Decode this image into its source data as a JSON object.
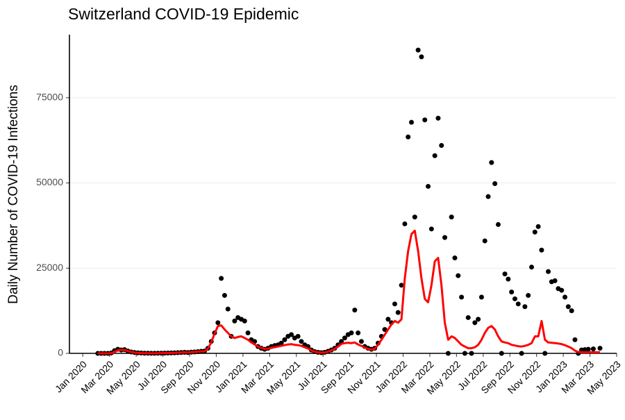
{
  "chart_data": {
    "type": "scatter",
    "title": "Switzerland COVID-19 Epidemic",
    "y_label": "Daily Number of COVID-19 Infections",
    "xlim": [
      "2019-12",
      "2023-05"
    ],
    "xticks": [
      {
        "value": "2020-01",
        "label": "Jan 2020"
      },
      {
        "value": "2020-03",
        "label": "Mar 2020"
      },
      {
        "value": "2020-05",
        "label": "May 2020"
      },
      {
        "value": "2020-07",
        "label": "Jul 2020"
      },
      {
        "value": "2020-09",
        "label": "Sep 2020"
      },
      {
        "value": "2020-11",
        "label": "Nov 2020"
      },
      {
        "value": "2021-01",
        "label": "Jan 2021"
      },
      {
        "value": "2021-03",
        "label": "Mar 2021"
      },
      {
        "value": "2021-05",
        "label": "May 2021"
      },
      {
        "value": "2021-07",
        "label": "Jul 2021"
      },
      {
        "value": "2021-09",
        "label": "Sep 2021"
      },
      {
        "value": "2021-11",
        "label": "Nov 2021"
      },
      {
        "value": "2022-01",
        "label": "Jan 2022"
      },
      {
        "value": "2022-03",
        "label": "Mar 2022"
      },
      {
        "value": "2022-05",
        "label": "May 2022"
      },
      {
        "value": "2022-07",
        "label": "Jul 2022"
      },
      {
        "value": "2022-09",
        "label": "Sep 2022"
      },
      {
        "value": "2022-11",
        "label": "Nov 2022"
      },
      {
        "value": "2023-01",
        "label": "Jan 2023"
      },
      {
        "value": "2023-03",
        "label": "Mar 2023"
      },
      {
        "value": "2023-05",
        "label": "May 2023"
      }
    ],
    "ylim": [
      0,
      93500
    ],
    "yticks": [
      0,
      25000,
      50000,
      75000
    ],
    "grid": true,
    "x": [
      "2020-02",
      "2020-02",
      "2020-02",
      "2020-02",
      "2020-03",
      "2020-03",
      "2020-03",
      "2020-03",
      "2020-04",
      "2020-04",
      "2020-04",
      "2020-04",
      "2020-05",
      "2020-05",
      "2020-05",
      "2020-05",
      "2020-06",
      "2020-06",
      "2020-06",
      "2020-06",
      "2020-07",
      "2020-07",
      "2020-07",
      "2020-07",
      "2020-08",
      "2020-08",
      "2020-08",
      "2020-08",
      "2020-09",
      "2020-09",
      "2020-09",
      "2020-09",
      "2020-10",
      "2020-10",
      "2020-10",
      "2020-10",
      "2020-11",
      "2020-11",
      "2020-11",
      "2020-11",
      "2020-12",
      "2020-12",
      "2020-12",
      "2020-12",
      "2021-01",
      "2021-01",
      "2021-01",
      "2021-01",
      "2021-02",
      "2021-02",
      "2021-02",
      "2021-02",
      "2021-03",
      "2021-03",
      "2021-03",
      "2021-03",
      "2021-04",
      "2021-04",
      "2021-04",
      "2021-04",
      "2021-05",
      "2021-05",
      "2021-05",
      "2021-05",
      "2021-06",
      "2021-06",
      "2021-06",
      "2021-06",
      "2021-07",
      "2021-07",
      "2021-07",
      "2021-07",
      "2021-08",
      "2021-08",
      "2021-08",
      "2021-08",
      "2021-09",
      "2021-09",
      "2021-09",
      "2021-09",
      "2021-10",
      "2021-10",
      "2021-10",
      "2021-10",
      "2021-11",
      "2021-11",
      "2021-11",
      "2021-11",
      "2021-12",
      "2021-12",
      "2021-12",
      "2021-12",
      "2022-01",
      "2022-01",
      "2022-01",
      "2022-01",
      "2022-02",
      "2022-02",
      "2022-02",
      "2022-02",
      "2022-03",
      "2022-03",
      "2022-03",
      "2022-03",
      "2022-04",
      "2022-04",
      "2022-04",
      "2022-04",
      "2022-05",
      "2022-05",
      "2022-05",
      "2022-05",
      "2022-06",
      "2022-06",
      "2022-06",
      "2022-06",
      "2022-07",
      "2022-07",
      "2022-07",
      "2022-07",
      "2022-08",
      "2022-08",
      "2022-08",
      "2022-08",
      "2022-09",
      "2022-09",
      "2022-09",
      "2022-09",
      "2022-10",
      "2022-10",
      "2022-10",
      "2022-10",
      "2022-11",
      "2022-11",
      "2022-11",
      "2022-11",
      "2022-12",
      "2022-12",
      "2022-12",
      "2022-12",
      "2023-01",
      "2023-01",
      "2023-01",
      "2023-01",
      "2023-02",
      "2023-02",
      "2023-02",
      "2023-02",
      "2023-03",
      "2023-03"
    ],
    "series": [
      {
        "type": "scatter",
        "color": "#000000",
        "values": [
          0,
          0,
          0,
          0,
          100,
          800,
          1200,
          1000,
          1100,
          700,
          400,
          250,
          150,
          100,
          50,
          40,
          30,
          30,
          40,
          50,
          80,
          100,
          120,
          150,
          200,
          250,
          300,
          250,
          350,
          400,
          500,
          600,
          700,
          1500,
          3500,
          6000,
          9000,
          22000,
          17000,
          13000,
          5000,
          9500,
          10500,
          10000,
          9500,
          6000,
          4000,
          3500,
          2000,
          1500,
          1200,
          1500,
          2000,
          2300,
          2500,
          3000,
          4000,
          5000,
          5500,
          4500,
          5000,
          3500,
          2500,
          2000,
          1000,
          500,
          300,
          200,
          300,
          600,
          1000,
          1500,
          2500,
          3500,
          4500,
          5500,
          6000,
          12700,
          6000,
          3500,
          2000,
          1500,
          1200,
          1500,
          3000,
          5000,
          7000,
          10000,
          9000,
          14500,
          12000,
          20000,
          38000,
          63500,
          67800,
          40000,
          89000,
          87000,
          68500,
          49000,
          36500,
          58000,
          69000,
          61000,
          34000,
          0,
          40000,
          28000,
          22800,
          16500,
          0,
          10500,
          0,
          9000,
          10000,
          16500,
          33000,
          46000,
          56000,
          49800,
          37800,
          0,
          23300,
          21800,
          18000,
          16000,
          14500,
          0,
          13700,
          17000,
          25300,
          35600,
          37200,
          30300,
          0,
          24000,
          21000,
          21300,
          19000,
          18500,
          16500,
          13700,
          12500,
          4000,
          0,
          1000,
          1100,
          1200,
          1300,
          1500
        ]
      },
      {
        "type": "line",
        "color": "#ff0000",
        "values": [
          0,
          0,
          0,
          0,
          50,
          400,
          900,
          1000,
          1000,
          700,
          400,
          250,
          120,
          80,
          50,
          40,
          30,
          30,
          40,
          50,
          80,
          100,
          120,
          150,
          200,
          250,
          300,
          250,
          350,
          400,
          500,
          600,
          600,
          1400,
          3200,
          5800,
          8000,
          8200,
          7000,
          6000,
          5000,
          4500,
          4800,
          5000,
          4500,
          4000,
          3200,
          2600,
          2000,
          1600,
          1300,
          1400,
          1600,
          1800,
          2000,
          2200,
          2400,
          2600,
          2700,
          2500,
          2400,
          2200,
          1800,
          1400,
          900,
          500,
          300,
          200,
          250,
          500,
          900,
          1300,
          2000,
          2800,
          3000,
          3100,
          3000,
          3200,
          2600,
          2200,
          1700,
          1300,
          1100,
          1300,
          2500,
          4000,
          5500,
          7000,
          8500,
          9500,
          9000,
          10000,
          22000,
          30000,
          35000,
          36000,
          30000,
          22000,
          16000,
          15000,
          20000,
          27000,
          28000,
          20000,
          9000,
          4000,
          5000,
          4500,
          3500,
          2500,
          2000,
          1500,
          1500,
          1800,
          2500,
          4000,
          6000,
          7500,
          8000,
          7000,
          5000,
          3500,
          3200,
          3000,
          2500,
          2300,
          2100,
          2000,
          2200,
          2500,
          3000,
          5000,
          5000,
          9500,
          4000,
          3200,
          3100,
          3000,
          2900,
          2700,
          2400,
          2000,
          1500,
          800,
          400,
          300,
          300,
          300,
          300,
          300
        ]
      }
    ]
  }
}
